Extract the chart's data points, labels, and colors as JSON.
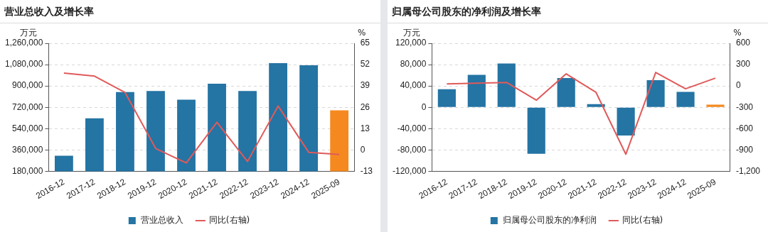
{
  "chart_data": [
    {
      "type": "bar",
      "title": "营业总收入及增长率",
      "ylabel": "万元",
      "y2label": "%",
      "categories": [
        "2016-12",
        "2017-12",
        "2018-12",
        "2019-12",
        "2020-12",
        "2021-12",
        "2022-12",
        "2023-12",
        "2024-12",
        "2025-09"
      ],
      "series": [
        {
          "name": "营业总收入",
          "color": "#2474a4",
          "colors": [
            "#2474a4",
            "#2474a4",
            "#2474a4",
            "#2474a4",
            "#2474a4",
            "#2474a4",
            "#2474a4",
            "#2474a4",
            "#2474a4",
            "#f5891f"
          ],
          "values": [
            311000,
            627000,
            849000,
            858000,
            785000,
            919000,
            858000,
            1093000,
            1075000,
            695000
          ]
        },
        {
          "name": "同比(右轴)",
          "type": "line",
          "axis": "y2",
          "color": "#e05a5a",
          "values": [
            46.9,
            45,
            35,
            0.9,
            -7.9,
            16.9,
            -7,
            26.8,
            -1.4,
            -2.7
          ]
        }
      ],
      "ylim": [
        180000,
        1260000
      ],
      "yticks": [
        {
          "value": 180000,
          "label": "180,000"
        },
        {
          "value": 360000,
          "label": "360,000"
        },
        {
          "value": 540000,
          "label": "540,000"
        },
        {
          "value": 720000,
          "label": "720,000"
        },
        {
          "value": 900000,
          "label": "900,000"
        },
        {
          "value": 1080000,
          "label": "1,080,000"
        },
        {
          "value": 1260000,
          "label": "1,260,000"
        }
      ],
      "y2lim": [
        -13,
        65
      ],
      "y2ticks": [
        -13,
        0,
        13,
        26,
        39,
        52,
        65
      ],
      "grid": "y",
      "legend": "bottom",
      "marker": "none"
    },
    {
      "type": "bar",
      "title": "归属母公司股东的净利润及增长率",
      "ylabel": "万元",
      "y2label": "%",
      "categories": [
        "2016-12",
        "2017-12",
        "2018-12",
        "2019-12",
        "2020-12",
        "2021-12",
        "2022-12",
        "2023-12",
        "2024-12",
        "2025-09"
      ],
      "series": [
        {
          "name": "归属母公司股东的净利润",
          "color": "#2474a4",
          "colors": [
            "#2474a4",
            "#2474a4",
            "#2474a4",
            "#2474a4",
            "#2474a4",
            "#2474a4",
            "#2474a4",
            "#2474a4",
            "#2474a4",
            "#f5891f"
          ],
          "values": [
            34000,
            61000,
            82000,
            -87000,
            55000,
            6000,
            -53000,
            51000,
            29000,
            5000
          ]
        },
        {
          "name": "同比(右轴)",
          "type": "line",
          "axis": "y2",
          "color": "#e05a5a",
          "values": [
            30,
            40,
            50,
            -200,
            170,
            -90,
            -960,
            190,
            -40,
            110
          ]
        }
      ],
      "ylim": [
        -120000,
        120000
      ],
      "yticks": [
        {
          "value": -120000,
          "label": "-120,000"
        },
        {
          "value": -80000,
          "label": "-80,000"
        },
        {
          "value": -40000,
          "label": "-40,000"
        },
        0,
        {
          "value": 40000,
          "label": "40,000"
        },
        {
          "value": 80000,
          "label": "80,000"
        },
        {
          "value": 120000,
          "label": "120,000"
        }
      ],
      "y2lim": [
        -1200,
        600
      ],
      "y2ticks": [
        {
          "value": -1200,
          "label": "-1,200"
        },
        -900,
        -600,
        -300,
        0,
        300,
        600
      ],
      "grid": "y",
      "legend": "bottom",
      "marker": "none"
    }
  ]
}
